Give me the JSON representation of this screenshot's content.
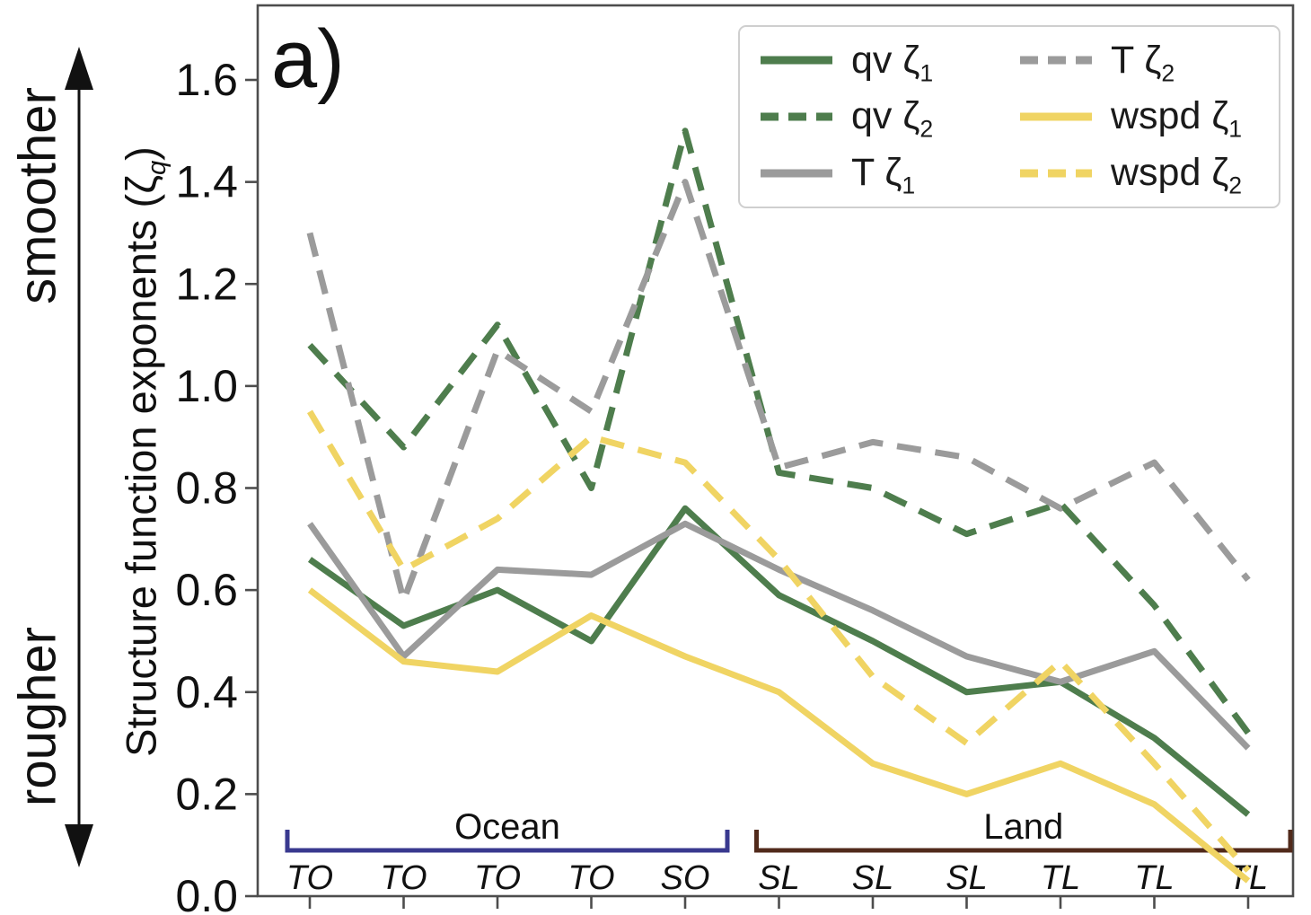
{
  "panel_label": "a)",
  "annotations": {
    "top": "smoother",
    "bottom": "rougher"
  },
  "y_axis": {
    "label_prefix": "Structure function exponents (",
    "zeta": "ζ",
    "sub": "q",
    "label_suffix": ")"
  },
  "brackets": [
    {
      "id": "ocean",
      "label": "Ocean",
      "from": 0,
      "to": 4,
      "color": "#39398f"
    },
    {
      "id": "land",
      "label": "Land",
      "from": 5,
      "to": 10,
      "color": "#512a1b"
    }
  ],
  "chart_data": {
    "type": "line",
    "title": "",
    "xlabel": "",
    "ylabel": "Structure function exponents (ζq)",
    "categories": [
      "TO",
      "TO",
      "TO",
      "TO",
      "SO",
      "SL",
      "SL",
      "SL",
      "TL",
      "TL",
      "TL"
    ],
    "category_groups": [
      {
        "label": "Ocean",
        "categories": [
          "TO",
          "TO",
          "TO",
          "TO",
          "SO"
        ]
      },
      {
        "label": "Land",
        "categories": [
          "SL",
          "SL",
          "SL",
          "TL",
          "TL",
          "TL"
        ]
      }
    ],
    "ylim": [
      0.0,
      1.745
    ],
    "yticks": [
      0.0,
      0.2,
      0.4,
      0.6,
      0.8,
      1.0,
      1.2,
      1.4,
      1.6
    ],
    "grid": false,
    "legend_position": "upper right",
    "series": [
      {
        "id": "qv-z1",
        "name": "qv ζ1",
        "legend_label": "qv ζ",
        "sub": "1",
        "color": "#4e7d4d",
        "dashed": false,
        "values": [
          0.66,
          0.53,
          0.6,
          0.5,
          0.76,
          0.59,
          0.5,
          0.4,
          0.42,
          0.31,
          0.16
        ]
      },
      {
        "id": "qv-z2",
        "name": "qv ζ2",
        "legend_label": "qv ζ",
        "sub": "2",
        "color": "#4e7d4d",
        "dashed": true,
        "values": [
          1.08,
          0.88,
          1.12,
          0.8,
          1.5,
          0.83,
          0.8,
          0.71,
          0.77,
          0.57,
          0.32
        ]
      },
      {
        "id": "t-z1",
        "name": "T ζ1",
        "legend_label": "T ζ",
        "sub": "1",
        "color": "#9b9b9b",
        "dashed": false,
        "values": [
          0.73,
          0.47,
          0.64,
          0.63,
          0.73,
          0.64,
          0.56,
          0.47,
          0.42,
          0.48,
          0.29
        ]
      },
      {
        "id": "t-z2",
        "name": "T ζ2",
        "legend_label": "T ζ",
        "sub": "2",
        "color": "#9b9b9b",
        "dashed": true,
        "values": [
          1.3,
          0.58,
          1.07,
          0.95,
          1.4,
          0.84,
          0.89,
          0.86,
          0.76,
          0.85,
          0.62
        ]
      },
      {
        "id": "wspd-z1",
        "name": "wspd ζ1",
        "legend_label": "wspd ζ",
        "sub": "1",
        "color": "#f0d463",
        "dashed": false,
        "values": [
          0.6,
          0.46,
          0.44,
          0.55,
          0.47,
          0.4,
          0.26,
          0.2,
          0.26,
          0.18,
          0.03
        ]
      },
      {
        "id": "wspd-z2",
        "name": "wspd ζ2",
        "legend_label": "wspd ζ",
        "sub": "2",
        "color": "#f0d463",
        "dashed": true,
        "values": [
          0.95,
          0.64,
          0.74,
          0.9,
          0.85,
          0.66,
          0.43,
          0.3,
          0.46,
          0.26,
          0.05
        ]
      }
    ]
  }
}
